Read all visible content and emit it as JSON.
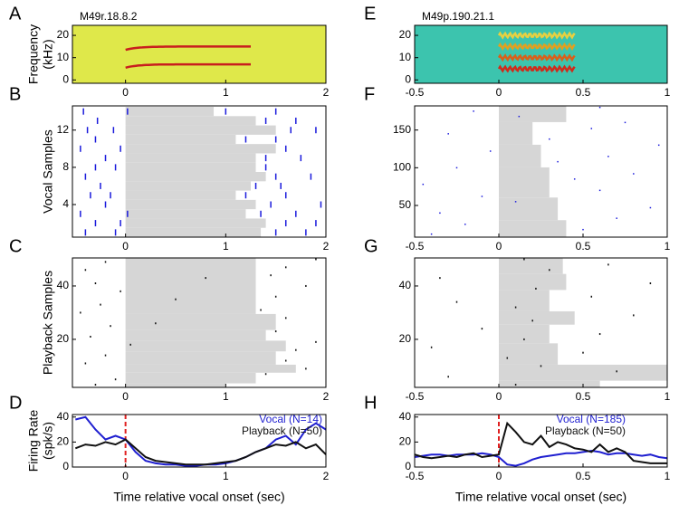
{
  "chart_data": [
    {
      "panel": "A",
      "type": "spectrogram",
      "title": "M49r.18.8.2",
      "ylabel_lines": [
        "Frequency",
        "(kHz)"
      ],
      "xlim": [
        -0.53,
        2.0
      ],
      "ylim": [
        -1.5,
        24.5
      ],
      "xticks": [
        0,
        1,
        2
      ],
      "yticks": [
        0,
        10,
        20
      ],
      "background": "#dfe84a",
      "harmonics": [
        {
          "freq": 7,
          "start": 0,
          "end": 1.25,
          "color": "#c81e1e"
        },
        {
          "freq": 15,
          "start": 0,
          "end": 1.25,
          "color": "#c81e1e"
        }
      ]
    },
    {
      "panel": "B",
      "type": "raster",
      "ylabel": "Vocal Samples",
      "xlim": [
        -0.53,
        2.0
      ],
      "ylim": [
        0.5,
        14.6
      ],
      "xticks": [
        0,
        1,
        2
      ],
      "yticks": [
        4,
        8,
        12
      ],
      "shade_color": "#d6d6d6",
      "tick_color": "#1a1adc",
      "tick_height": 7,
      "shading": [
        [
          1,
          1,
          1.35
        ],
        [
          2,
          2,
          1.4
        ],
        [
          3,
          3,
          1.2
        ],
        [
          4,
          4,
          1.3
        ],
        [
          5,
          5,
          1.1
        ],
        [
          6,
          6,
          1.25
        ],
        [
          7,
          7,
          1.4
        ],
        [
          8,
          8,
          1.3
        ],
        [
          9,
          9,
          1.3
        ],
        [
          10,
          10,
          1.5
        ],
        [
          11,
          11,
          1.1
        ],
        [
          12,
          12,
          1.5
        ],
        [
          13,
          13,
          1.3
        ],
        [
          14,
          14,
          0.88
        ]
      ],
      "spikes": [
        [
          1,
          -0.4
        ],
        [
          1,
          -0.1
        ],
        [
          1,
          1.5
        ],
        [
          1,
          1.8
        ],
        [
          2,
          -0.3
        ],
        [
          2,
          -0.05
        ],
        [
          2,
          1.6
        ],
        [
          2,
          1.9
        ],
        [
          3,
          -0.45
        ],
        [
          3,
          0.02
        ],
        [
          3,
          1.35
        ],
        [
          3,
          1.7
        ],
        [
          4,
          -0.2
        ],
        [
          4,
          1.45
        ],
        [
          4,
          1.95
        ],
        [
          5,
          -0.35
        ],
        [
          5,
          -0.15
        ],
        [
          5,
          1.2
        ],
        [
          5,
          1.6
        ],
        [
          6,
          -0.25
        ],
        [
          6,
          1.3
        ],
        [
          6,
          1.55
        ],
        [
          7,
          -0.4
        ],
        [
          7,
          1.5
        ],
        [
          7,
          1.85
        ],
        [
          8,
          -0.3
        ],
        [
          8,
          -0.1
        ],
        [
          8,
          1.4
        ],
        [
          9,
          -0.2
        ],
        [
          9,
          1.4
        ],
        [
          9,
          1.75
        ],
        [
          10,
          -0.45
        ],
        [
          10,
          -0.05
        ],
        [
          10,
          1.6
        ],
        [
          11,
          -0.3
        ],
        [
          11,
          1.2
        ],
        [
          11,
          1.5
        ],
        [
          12,
          -0.38
        ],
        [
          12,
          -0.12
        ],
        [
          12,
          1.65
        ],
        [
          12,
          1.9
        ],
        [
          13,
          -0.28
        ],
        [
          13,
          1.4
        ],
        [
          13,
          1.7
        ],
        [
          14,
          -0.42
        ],
        [
          14,
          0.02
        ],
        [
          14,
          1.0
        ],
        [
          14,
          1.5
        ]
      ]
    },
    {
      "panel": "C",
      "type": "raster",
      "ylabel": "Playback Samples",
      "xlim": [
        -0.53,
        2.0
      ],
      "ylim": [
        2,
        50.5
      ],
      "xticks": [
        0,
        1,
        2
      ],
      "yticks": [
        20,
        40
      ],
      "shade_color": "#d6d6d6",
      "tick_color": "#111111",
      "tick_height": 2,
      "shading": [
        [
          1,
          3,
          1.0
        ],
        [
          4,
          7,
          1.3
        ],
        [
          8,
          10,
          1.7
        ],
        [
          11,
          15,
          1.5
        ],
        [
          16,
          19,
          1.6
        ],
        [
          20,
          23,
          1.4
        ],
        [
          24,
          29,
          1.5
        ],
        [
          30,
          50,
          1.3
        ]
      ],
      "spikes": [
        [
          3,
          -0.3
        ],
        [
          5,
          -0.1
        ],
        [
          7,
          1.4
        ],
        [
          9,
          1.8
        ],
        [
          11,
          -0.4
        ],
        [
          12,
          1.6
        ],
        [
          14,
          -0.2
        ],
        [
          16,
          1.7
        ],
        [
          18,
          0.05
        ],
        [
          19,
          1.9
        ],
        [
          21,
          -0.35
        ],
        [
          23,
          1.5
        ],
        [
          25,
          -0.15
        ],
        [
          26,
          0.3
        ],
        [
          28,
          1.6
        ],
        [
          30,
          -0.45
        ],
        [
          31,
          1.35
        ],
        [
          33,
          -0.25
        ],
        [
          35,
          0.5
        ],
        [
          36,
          1.5
        ],
        [
          38,
          -0.05
        ],
        [
          40,
          1.8
        ],
        [
          41,
          -0.3
        ],
        [
          43,
          0.8
        ],
        [
          44,
          1.45
        ],
        [
          46,
          -0.4
        ],
        [
          47,
          1.6
        ],
        [
          49,
          -0.2
        ],
        [
          50,
          1.9
        ]
      ]
    },
    {
      "panel": "D",
      "type": "line",
      "ylabel_lines": [
        "Firing Rate",
        "(spk/s)"
      ],
      "xlabel": "Time relative vocal onset (sec)",
      "xlim": [
        -0.53,
        2.0
      ],
      "ylim": [
        0,
        42
      ],
      "xticks": [
        0,
        1,
        2
      ],
      "yticks": [
        0,
        20,
        40
      ],
      "onset": 0,
      "onset_color": "#e02020",
      "legend": "upper right",
      "x": [
        -0.5,
        -0.4,
        -0.3,
        -0.2,
        -0.1,
        0,
        0.1,
        0.2,
        0.3,
        0.4,
        0.5,
        0.6,
        0.7,
        0.8,
        0.9,
        1.0,
        1.1,
        1.2,
        1.3,
        1.4,
        1.5,
        1.6,
        1.7,
        1.8,
        1.9,
        2.0
      ],
      "series": [
        {
          "name": "Vocal (N=14)",
          "color": "#1f1fd0",
          "values": [
            38,
            40,
            30,
            22,
            25,
            22,
            12,
            5,
            3,
            2,
            2,
            1,
            1,
            2,
            2,
            3,
            5,
            8,
            12,
            15,
            22,
            25,
            18,
            30,
            35,
            30
          ]
        },
        {
          "name": "Playback (N=50)",
          "color": "#111111",
          "values": [
            15,
            18,
            17,
            20,
            18,
            22,
            15,
            8,
            5,
            4,
            3,
            2,
            2,
            2,
            3,
            4,
            5,
            8,
            12,
            15,
            18,
            17,
            20,
            15,
            18,
            10
          ]
        }
      ]
    },
    {
      "panel": "E",
      "type": "spectrogram",
      "title": "M49p.190.21.1",
      "xlim": [
        -0.5,
        1.0
      ],
      "ylim": [
        -1.5,
        24.5
      ],
      "xticks": [
        -0.5,
        0,
        0.5,
        1
      ],
      "yticks": [
        0,
        10,
        20
      ],
      "background": "#3cc4ae",
      "harmonics": [
        {
          "freq": 5,
          "start": 0,
          "end": 0.45,
          "color": "#d02a1a"
        },
        {
          "freq": 10,
          "start": 0,
          "end": 0.45,
          "color": "#d8601a"
        },
        {
          "freq": 15,
          "start": 0,
          "end": 0.45,
          "color": "#e0a020"
        },
        {
          "freq": 20,
          "start": 0,
          "end": 0.45,
          "color": "#e8d040"
        }
      ]
    },
    {
      "panel": "F",
      "type": "raster",
      "xlim": [
        -0.5,
        1.0
      ],
      "ylim": [
        8,
        182
      ],
      "xticks": [
        -0.5,
        0,
        0.5,
        1
      ],
      "yticks": [
        50,
        100,
        150
      ],
      "shade_color": "#d6d6d6",
      "tick_color": "#1a1adc",
      "tick_height": 1.5,
      "shading": [
        [
          8,
          30,
          0.4
        ],
        [
          31,
          60,
          0.35
        ],
        [
          61,
          100,
          0.3
        ],
        [
          101,
          130,
          0.25
        ],
        [
          131,
          160,
          0.2
        ],
        [
          161,
          182,
          0.4
        ]
      ],
      "spikes": [
        [
          12,
          -0.4
        ],
        [
          18,
          0.5
        ],
        [
          25,
          -0.2
        ],
        [
          33,
          0.7
        ],
        [
          40,
          -0.35
        ],
        [
          47,
          0.9
        ],
        [
          55,
          0.1
        ],
        [
          62,
          -0.1
        ],
        [
          70,
          0.6
        ],
        [
          78,
          -0.45
        ],
        [
          85,
          0.45
        ],
        [
          92,
          0.8
        ],
        [
          100,
          -0.25
        ],
        [
          108,
          0.35
        ],
        [
          115,
          0.65
        ],
        [
          122,
          -0.05
        ],
        [
          130,
          0.95
        ],
        [
          138,
          0.3
        ],
        [
          145,
          -0.3
        ],
        [
          152,
          0.55
        ],
        [
          160,
          0.75
        ],
        [
          168,
          0.12
        ],
        [
          175,
          -0.15
        ],
        [
          180,
          0.6
        ]
      ]
    },
    {
      "panel": "G",
      "type": "raster",
      "xlim": [
        -0.5,
        1.0
      ],
      "ylim": [
        2,
        50.5
      ],
      "xticks": [
        -0.5,
        0,
        0.5,
        1
      ],
      "yticks": [
        20,
        40
      ],
      "shade_color": "#d6d6d6",
      "tick_color": "#111111",
      "tick_height": 2,
      "shading": [
        [
          1,
          4,
          0.6
        ],
        [
          5,
          10,
          1.0
        ],
        [
          11,
          18,
          0.35
        ],
        [
          19,
          25,
          0.3
        ],
        [
          26,
          30,
          0.45
        ],
        [
          31,
          38,
          0.3
        ],
        [
          39,
          44,
          0.4
        ],
        [
          45,
          50,
          0.38
        ]
      ],
      "spikes": [
        [
          3,
          0.1
        ],
        [
          6,
          -0.3
        ],
        [
          8,
          0.7
        ],
        [
          10,
          0.25
        ],
        [
          13,
          0.05
        ],
        [
          15,
          0.5
        ],
        [
          17,
          -0.4
        ],
        [
          20,
          0.15
        ],
        [
          22,
          0.6
        ],
        [
          24,
          -0.1
        ],
        [
          27,
          0.2
        ],
        [
          29,
          0.8
        ],
        [
          32,
          0.1
        ],
        [
          34,
          -0.25
        ],
        [
          36,
          0.55
        ],
        [
          39,
          0.22
        ],
        [
          41,
          0.9
        ],
        [
          43,
          -0.35
        ],
        [
          46,
          0.3
        ],
        [
          48,
          0.65
        ],
        [
          50,
          0.15
        ]
      ]
    },
    {
      "panel": "H",
      "type": "line",
      "xlabel": "Time relative vocal onset (sec)",
      "xlim": [
        -0.5,
        1.0
      ],
      "ylim": [
        0,
        42
      ],
      "xticks": [
        -0.5,
        0,
        0.5,
        1
      ],
      "yticks": [
        0,
        20,
        40
      ],
      "onset": 0,
      "onset_color": "#e02020",
      "legend": "upper right",
      "x": [
        -0.5,
        -0.45,
        -0.4,
        -0.35,
        -0.3,
        -0.25,
        -0.2,
        -0.15,
        -0.1,
        -0.05,
        0,
        0.05,
        0.1,
        0.15,
        0.2,
        0.25,
        0.3,
        0.35,
        0.4,
        0.45,
        0.5,
        0.55,
        0.6,
        0.65,
        0.7,
        0.75,
        0.8,
        0.85,
        0.9,
        0.95,
        1.0
      ],
      "series": [
        {
          "name": "Vocal (N=185)",
          "color": "#1f1fd0",
          "values": [
            8,
            9,
            10,
            10,
            9,
            10,
            10,
            10,
            11,
            10,
            8,
            2,
            1,
            3,
            6,
            8,
            9,
            10,
            11,
            11,
            12,
            13,
            12,
            10,
            11,
            11,
            10,
            9,
            10,
            8,
            7
          ]
        },
        {
          "name": "Playback (N=50)",
          "color": "#111111",
          "values": [
            10,
            8,
            7,
            8,
            9,
            8,
            10,
            11,
            8,
            9,
            10,
            35,
            28,
            20,
            18,
            25,
            16,
            20,
            18,
            15,
            14,
            12,
            18,
            12,
            15,
            12,
            5,
            4,
            3,
            3,
            3
          ]
        }
      ]
    }
  ]
}
